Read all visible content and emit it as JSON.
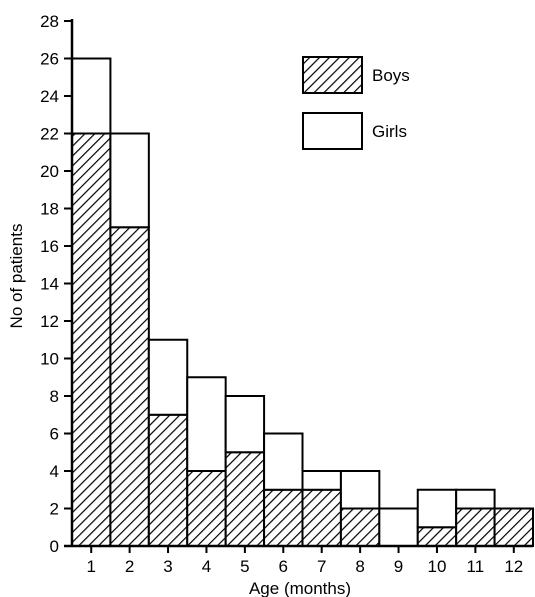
{
  "chart_data": {
    "type": "bar",
    "stacked": true,
    "categories": [
      "1",
      "2",
      "3",
      "4",
      "5",
      "6",
      "7",
      "8",
      "9",
      "10",
      "11",
      "12"
    ],
    "series": [
      {
        "name": "Boys",
        "values": [
          22,
          17,
          7,
          4,
          5,
          3,
          3,
          2,
          0,
          1,
          2,
          2
        ],
        "fill": "hatched"
      },
      {
        "name": "Girls",
        "values": [
          4,
          5,
          4,
          5,
          3,
          3,
          1,
          2,
          2,
          2,
          1,
          0
        ],
        "fill": "white"
      }
    ],
    "title": "",
    "xlabel": "Age (months)",
    "ylabel": "No of patients",
    "ylim": [
      0,
      28
    ],
    "yticks": [
      0,
      2,
      4,
      6,
      8,
      10,
      12,
      14,
      16,
      18,
      20,
      22,
      24,
      26,
      28
    ],
    "grid": false,
    "legend_position": "top-right"
  }
}
